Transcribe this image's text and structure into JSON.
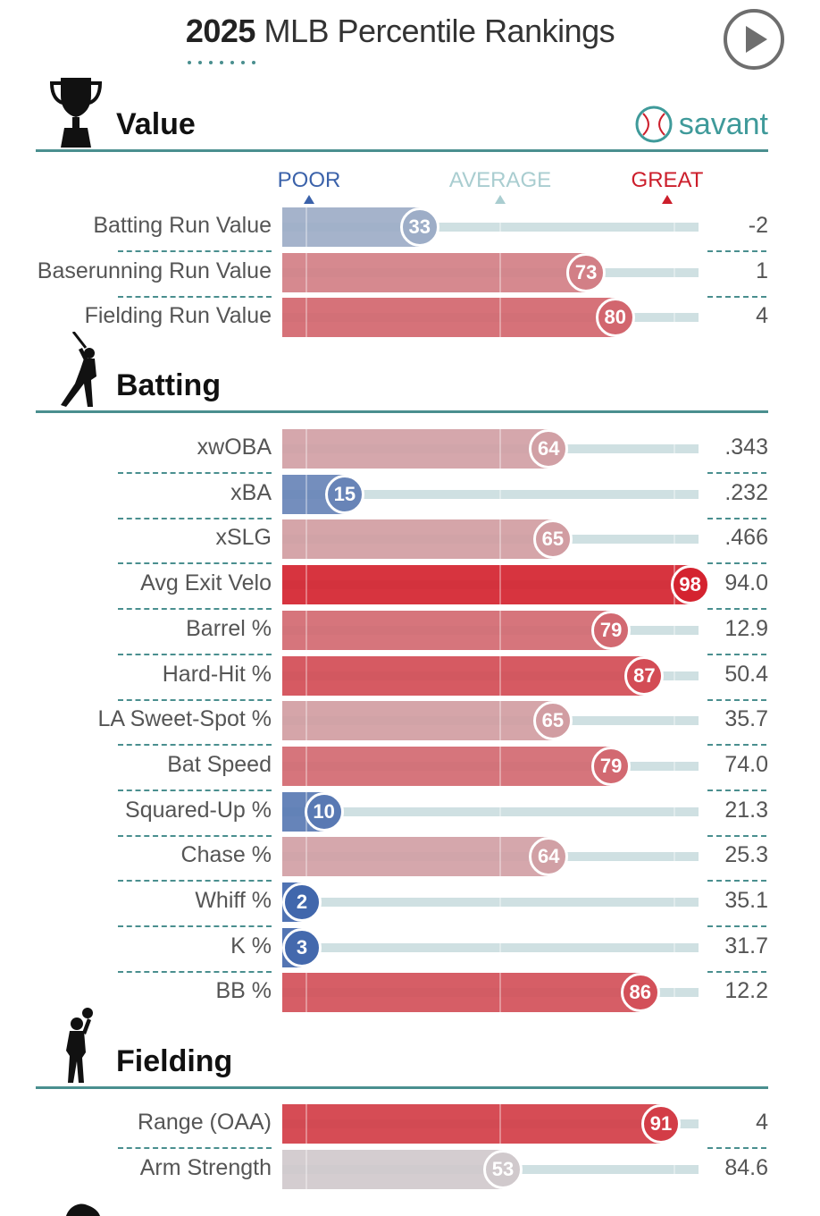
{
  "title": {
    "year": "2025",
    "text": "MLB Percentile Rankings"
  },
  "brand": {
    "name": "savant",
    "icon": "baseball-icon"
  },
  "colors": {
    "accent": "#4a8f8f",
    "poor": "#3b62aa",
    "average": "#a9cdd0",
    "great": "#cc1e2b"
  },
  "scale": {
    "poor": "POOR",
    "average": "AVERAGE",
    "great": "GREAT"
  },
  "sections": [
    {
      "name": "Value",
      "icon": "trophy-icon"
    },
    {
      "name": "Batting",
      "icon": "batter-icon"
    },
    {
      "name": "Fielding",
      "icon": "fielder-icon"
    }
  ],
  "chart_data": {
    "type": "bar",
    "xlim": [
      0,
      100
    ],
    "sections": [
      {
        "name": "Value",
        "metrics": [
          {
            "label": "Batting Run Value",
            "percentile": 33,
            "value": "-2"
          },
          {
            "label": "Baserunning Run Value",
            "percentile": 73,
            "value": "1"
          },
          {
            "label": "Fielding Run Value",
            "percentile": 80,
            "value": "4"
          }
        ]
      },
      {
        "name": "Batting",
        "metrics": [
          {
            "label": "xwOBA",
            "percentile": 64,
            "value": ".343"
          },
          {
            "label": "xBA",
            "percentile": 15,
            "value": ".232"
          },
          {
            "label": "xSLG",
            "percentile": 65,
            "value": ".466"
          },
          {
            "label": "Avg Exit Velo",
            "percentile": 98,
            "value": "94.0"
          },
          {
            "label": "Barrel %",
            "percentile": 79,
            "value": "12.9"
          },
          {
            "label": "Hard-Hit %",
            "percentile": 87,
            "value": "50.4"
          },
          {
            "label": "LA Sweet-Spot %",
            "percentile": 65,
            "value": "35.7"
          },
          {
            "label": "Bat Speed",
            "percentile": 79,
            "value": "74.0"
          },
          {
            "label": "Squared-Up %",
            "percentile": 10,
            "value": "21.3"
          },
          {
            "label": "Chase %",
            "percentile": 64,
            "value": "25.3"
          },
          {
            "label": "Whiff %",
            "percentile": 2,
            "value": "35.1"
          },
          {
            "label": "K %",
            "percentile": 3,
            "value": "31.7"
          },
          {
            "label": "BB %",
            "percentile": 86,
            "value": "12.2"
          }
        ]
      },
      {
        "name": "Fielding",
        "metrics": [
          {
            "label": "Range (OAA)",
            "percentile": 91,
            "value": "4"
          },
          {
            "label": "Arm Strength",
            "percentile": 53,
            "value": "84.6"
          }
        ]
      }
    ]
  }
}
